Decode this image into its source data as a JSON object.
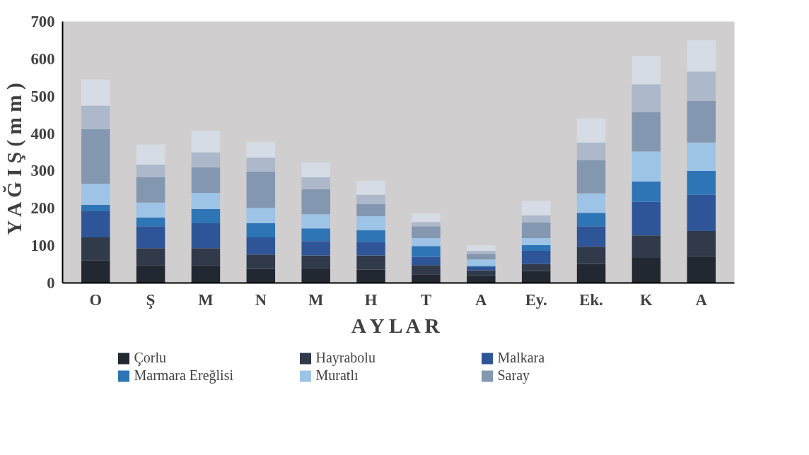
{
  "chart_data": {
    "type": "bar",
    "stacked": true,
    "xlabel": "A Y L A R",
    "ylabel": "Y A Ğ I Ş   ( m m )",
    "categories": [
      "O",
      "Ş",
      "M",
      "N",
      "M",
      "H",
      "T",
      "A",
      "Ey.",
      "Ek.",
      "K",
      "A"
    ],
    "ylim": [
      0,
      700
    ],
    "yticks": [
      0,
      100,
      200,
      300,
      400,
      500,
      600,
      700
    ],
    "grid": false,
    "legend": "bottom",
    "series": [
      {
        "name": "Çorlu",
        "color": "#222831",
        "values": [
          61,
          48,
          48,
          38,
          40,
          36,
          23,
          21,
          32,
          51,
          67,
          72
        ]
      },
      {
        "name": "Hayrabolu",
        "color": "#303a4a",
        "values": [
          61,
          45,
          45,
          38,
          34,
          38,
          25,
          13,
          19,
          46,
          60,
          67
        ]
      },
      {
        "name": "Malkara",
        "color": "#2e5597",
        "values": [
          70,
          59,
          67,
          46,
          38,
          36,
          22,
          10,
          35,
          55,
          90,
          97
        ]
      },
      {
        "name": "Marmara Ereğlisi",
        "color": "#2e75b6",
        "values": [
          17,
          23,
          38,
          38,
          34,
          31,
          29,
          2,
          15,
          36,
          55,
          64
        ]
      },
      {
        "name": "Muratlı",
        "color": "#9dc3e6",
        "values": [
          57,
          40,
          43,
          41,
          38,
          38,
          21,
          17,
          19,
          52,
          80,
          76
        ]
      },
      {
        "name": "Saray",
        "color": "#8497b0",
        "values": [
          146,
          68,
          69,
          97,
          67,
          32,
          32,
          15,
          42,
          89,
          106,
          112
        ]
      },
      {
        "color": "#adb9ca",
        "values": [
          63,
          34,
          40,
          38,
          32,
          25,
          11,
          8,
          19,
          47,
          74,
          78
        ]
      },
      {
        "color": "#d6dce5",
        "values": [
          70,
          54,
          57,
          42,
          40,
          38,
          23,
          15,
          38,
          65,
          76,
          84
        ]
      }
    ]
  }
}
